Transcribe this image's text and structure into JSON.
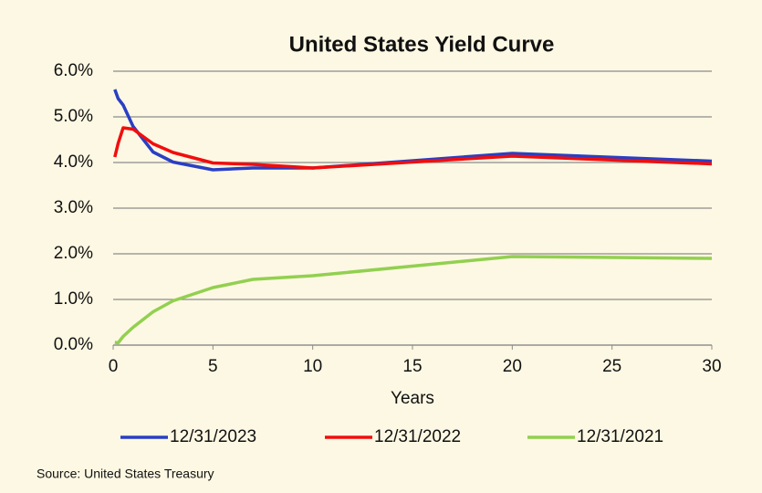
{
  "chart_data": {
    "type": "line",
    "title": "United States Yield Curve",
    "x_label": "Years",
    "source": "Source: United States Treasury",
    "x": [
      0.083,
      0.25,
      0.5,
      1,
      2,
      3,
      5,
      7,
      10,
      20,
      30
    ],
    "series": [
      {
        "name": "12/31/2023",
        "color": "#2a3fc4",
        "values": [
          5.6,
          5.4,
          5.26,
          4.79,
          4.23,
          4.01,
          3.84,
          3.88,
          3.88,
          4.2,
          4.03
        ]
      },
      {
        "name": "12/31/2022",
        "color": "#f20d0d",
        "values": [
          4.12,
          4.42,
          4.76,
          4.73,
          4.41,
          4.22,
          3.99,
          3.96,
          3.88,
          4.14,
          3.97
        ]
      },
      {
        "name": "12/31/2021",
        "color": "#92d050",
        "values": [
          0.06,
          0.05,
          0.19,
          0.39,
          0.73,
          0.97,
          1.26,
          1.44,
          1.52,
          1.94,
          1.9
        ]
      }
    ],
    "xlim": [
      0,
      30
    ],
    "xticks": [
      0,
      5,
      10,
      15,
      20,
      25,
      30
    ],
    "ylim": [
      0,
      6
    ],
    "yticks": [
      {
        "value": 0,
        "label": "0.0%"
      },
      {
        "value": 1,
        "label": "1.0%"
      },
      {
        "value": 2,
        "label": "2.0%"
      },
      {
        "value": 3,
        "label": "3.0%"
      },
      {
        "value": 4,
        "label": "4.0%"
      },
      {
        "value": 5,
        "label": "5.0%"
      },
      {
        "value": 6,
        "label": "6.0%"
      }
    ],
    "grid": true,
    "legend": "bottom"
  }
}
